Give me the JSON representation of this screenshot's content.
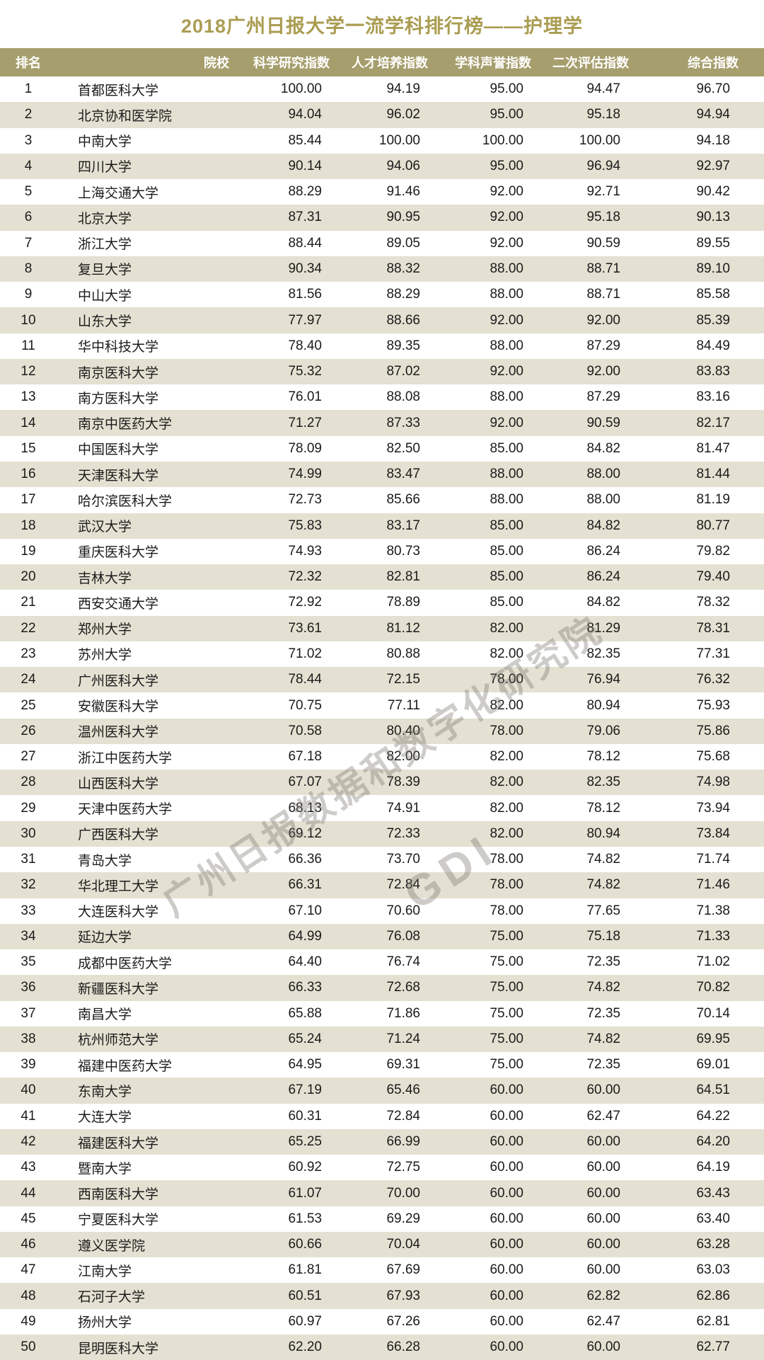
{
  "page": {
    "title": "2018广州日报大学一流学科排行榜——护理学"
  },
  "watermark": {
    "line1": "广州日报数据和数字化研究院",
    "line2": "GDI"
  },
  "colors": {
    "title_text": "#aa9d52",
    "header_bg": "#a69e6c",
    "header_text": "#ffffff",
    "row_alt_bg": "#e4e1d2",
    "body_text": "#1b1b1b"
  },
  "table": {
    "columns": [
      "排名",
      "院校",
      "科学研究指数",
      "人才培养指数",
      "学科声誉指数",
      "二次评估指数",
      "综合指数"
    ],
    "rows": [
      [
        "1",
        "首都医科大学",
        "100.00",
        "94.19",
        "95.00",
        "94.47",
        "96.70"
      ],
      [
        "2",
        "北京协和医学院",
        "94.04",
        "96.02",
        "95.00",
        "95.18",
        "94.94"
      ],
      [
        "3",
        "中南大学",
        "85.44",
        "100.00",
        "100.00",
        "100.00",
        "94.18"
      ],
      [
        "4",
        "四川大学",
        "90.14",
        "94.06",
        "95.00",
        "96.94",
        "92.97"
      ],
      [
        "5",
        "上海交通大学",
        "88.29",
        "91.46",
        "92.00",
        "92.71",
        "90.42"
      ],
      [
        "6",
        "北京大学",
        "87.31",
        "90.95",
        "92.00",
        "95.18",
        "90.13"
      ],
      [
        "7",
        "浙江大学",
        "88.44",
        "89.05",
        "92.00",
        "90.59",
        "89.55"
      ],
      [
        "8",
        "复旦大学",
        "90.34",
        "88.32",
        "88.00",
        "88.71",
        "89.10"
      ],
      [
        "9",
        "中山大学",
        "81.56",
        "88.29",
        "88.00",
        "88.71",
        "85.58"
      ],
      [
        "10",
        "山东大学",
        "77.97",
        "88.66",
        "92.00",
        "92.00",
        "85.39"
      ],
      [
        "11",
        "华中科技大学",
        "78.40",
        "89.35",
        "88.00",
        "87.29",
        "84.49"
      ],
      [
        "12",
        "南京医科大学",
        "75.32",
        "87.02",
        "92.00",
        "92.00",
        "83.83"
      ],
      [
        "13",
        "南方医科大学",
        "76.01",
        "88.08",
        "88.00",
        "87.29",
        "83.16"
      ],
      [
        "14",
        "南京中医药大学",
        "71.27",
        "87.33",
        "92.00",
        "90.59",
        "82.17"
      ],
      [
        "15",
        "中国医科大学",
        "78.09",
        "82.50",
        "85.00",
        "84.82",
        "81.47"
      ],
      [
        "16",
        "天津医科大学",
        "74.99",
        "83.47",
        "88.00",
        "88.00",
        "81.44"
      ],
      [
        "17",
        "哈尔滨医科大学",
        "72.73",
        "85.66",
        "88.00",
        "88.00",
        "81.19"
      ],
      [
        "18",
        "武汉大学",
        "75.83",
        "83.17",
        "85.00",
        "84.82",
        "80.77"
      ],
      [
        "19",
        "重庆医科大学",
        "74.93",
        "80.73",
        "85.00",
        "86.24",
        "79.82"
      ],
      [
        "20",
        "吉林大学",
        "72.32",
        "82.81",
        "85.00",
        "86.24",
        "79.40"
      ],
      [
        "21",
        "西安交通大学",
        "72.92",
        "78.89",
        "85.00",
        "84.82",
        "78.32"
      ],
      [
        "22",
        "郑州大学",
        "73.61",
        "81.12",
        "82.00",
        "81.29",
        "78.31"
      ],
      [
        "23",
        "苏州大学",
        "71.02",
        "80.88",
        "82.00",
        "82.35",
        "77.31"
      ],
      [
        "24",
        "广州医科大学",
        "78.44",
        "72.15",
        "78.00",
        "76.94",
        "76.32"
      ],
      [
        "25",
        "安徽医科大学",
        "70.75",
        "77.11",
        "82.00",
        "80.94",
        "75.93"
      ],
      [
        "26",
        "温州医科大学",
        "70.58",
        "80.40",
        "78.00",
        "79.06",
        "75.86"
      ],
      [
        "27",
        "浙江中医药大学",
        "67.18",
        "82.00",
        "82.00",
        "78.12",
        "75.68"
      ],
      [
        "28",
        "山西医科大学",
        "67.07",
        "78.39",
        "82.00",
        "82.35",
        "74.98"
      ],
      [
        "29",
        "天津中医药大学",
        "68.13",
        "74.91",
        "82.00",
        "78.12",
        "73.94"
      ],
      [
        "30",
        "广西医科大学",
        "69.12",
        "72.33",
        "82.00",
        "80.94",
        "73.84"
      ],
      [
        "31",
        "青岛大学",
        "66.36",
        "73.70",
        "78.00",
        "74.82",
        "71.74"
      ],
      [
        "32",
        "华北理工大学",
        "66.31",
        "72.84",
        "78.00",
        "74.82",
        "71.46"
      ],
      [
        "33",
        "大连医科大学",
        "67.10",
        "70.60",
        "78.00",
        "77.65",
        "71.38"
      ],
      [
        "34",
        "延边大学",
        "64.99",
        "76.08",
        "75.00",
        "75.18",
        "71.33"
      ],
      [
        "35",
        "成都中医药大学",
        "64.40",
        "76.74",
        "75.00",
        "72.35",
        "71.02"
      ],
      [
        "36",
        "新疆医科大学",
        "66.33",
        "72.68",
        "75.00",
        "74.82",
        "70.82"
      ],
      [
        "37",
        "南昌大学",
        "65.88",
        "71.86",
        "75.00",
        "72.35",
        "70.14"
      ],
      [
        "38",
        "杭州师范大学",
        "65.24",
        "71.24",
        "75.00",
        "74.82",
        "69.95"
      ],
      [
        "39",
        "福建中医药大学",
        "64.95",
        "69.31",
        "75.00",
        "72.35",
        "69.01"
      ],
      [
        "40",
        "东南大学",
        "67.19",
        "65.46",
        "60.00",
        "60.00",
        "64.51"
      ],
      [
        "41",
        "大连大学",
        "60.31",
        "72.84",
        "60.00",
        "62.47",
        "64.22"
      ],
      [
        "42",
        "福建医科大学",
        "65.25",
        "66.99",
        "60.00",
        "60.00",
        "64.20"
      ],
      [
        "43",
        "暨南大学",
        "60.92",
        "72.75",
        "60.00",
        "60.00",
        "64.19"
      ],
      [
        "44",
        "西南医科大学",
        "61.07",
        "70.00",
        "60.00",
        "60.00",
        "63.43"
      ],
      [
        "45",
        "宁夏医科大学",
        "61.53",
        "69.29",
        "60.00",
        "60.00",
        "63.40"
      ],
      [
        "46",
        "遵义医学院",
        "60.66",
        "70.04",
        "60.00",
        "60.00",
        "63.28"
      ],
      [
        "47",
        "江南大学",
        "61.81",
        "67.69",
        "60.00",
        "60.00",
        "63.03"
      ],
      [
        "48",
        "石河子大学",
        "60.51",
        "67.93",
        "60.00",
        "62.82",
        "62.86"
      ],
      [
        "49",
        "扬州大学",
        "60.97",
        "67.26",
        "60.00",
        "62.47",
        "62.81"
      ],
      [
        "50",
        "昆明医科大学",
        "62.20",
        "66.28",
        "60.00",
        "60.00",
        "62.77"
      ]
    ]
  }
}
